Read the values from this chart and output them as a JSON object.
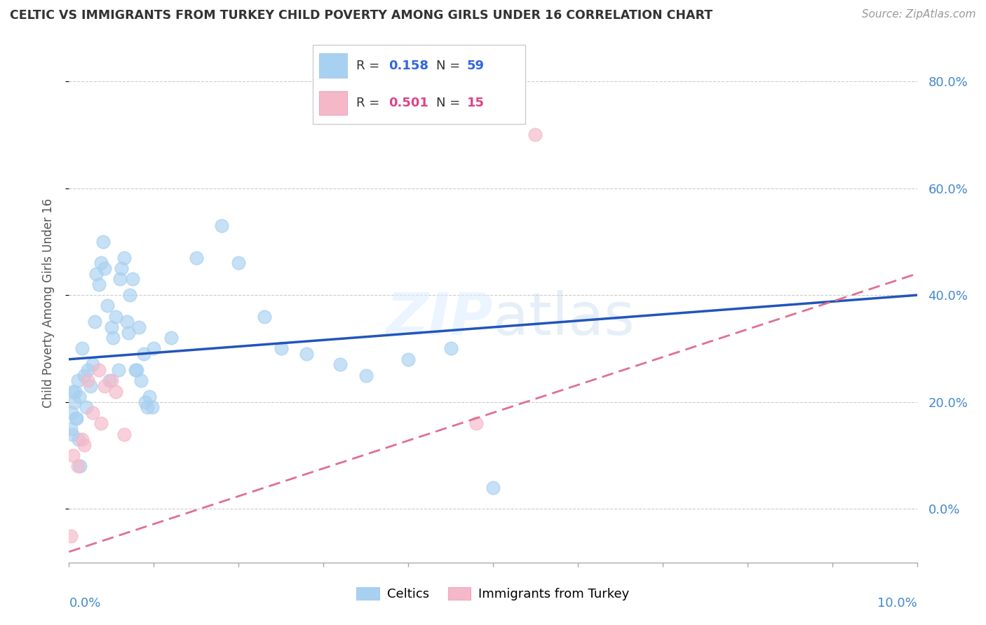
{
  "title": "CELTIC VS IMMIGRANTS FROM TURKEY CHILD POVERTY AMONG GIRLS UNDER 16 CORRELATION CHART",
  "source": "Source: ZipAtlas.com",
  "ylabel": "Child Poverty Among Girls Under 16",
  "xlim": [
    0.0,
    10.0
  ],
  "ylim": [
    -10.0,
    87.0
  ],
  "yticks": [
    0.0,
    20.0,
    40.0,
    60.0,
    80.0
  ],
  "ytick_labels": [
    "0.0%",
    "20.0%",
    "40.0%",
    "60.0%",
    "80.0%"
  ],
  "celtics_color": "#a8d0f0",
  "turkey_color": "#f5b8c8",
  "celtics_line_color": "#2255bb",
  "turkey_line_color": "#e07090",
  "celtics_x": [
    0.05,
    0.08,
    0.1,
    0.12,
    0.15,
    0.18,
    0.2,
    0.22,
    0.25,
    0.28,
    0.3,
    0.32,
    0.35,
    0.38,
    0.4,
    0.42,
    0.45,
    0.48,
    0.5,
    0.52,
    0.55,
    0.58,
    0.6,
    0.62,
    0.65,
    0.68,
    0.7,
    0.72,
    0.75,
    0.78,
    0.8,
    0.82,
    0.85,
    0.88,
    0.9,
    0.92,
    0.95,
    0.98,
    1.0,
    1.2,
    1.5,
    1.8,
    2.0,
    2.3,
    2.5,
    2.8,
    3.2,
    3.5,
    4.0,
    4.5,
    0.02,
    0.03,
    0.04,
    0.06,
    0.07,
    0.09,
    0.11,
    0.13,
    5.0
  ],
  "celtics_y": [
    22.0,
    17.0,
    24.0,
    21.0,
    30.0,
    25.0,
    19.0,
    26.0,
    23.0,
    27.0,
    35.0,
    44.0,
    42.0,
    46.0,
    50.0,
    45.0,
    38.0,
    24.0,
    34.0,
    32.0,
    36.0,
    26.0,
    43.0,
    45.0,
    47.0,
    35.0,
    33.0,
    40.0,
    43.0,
    26.0,
    26.0,
    34.0,
    24.0,
    29.0,
    20.0,
    19.0,
    21.0,
    19.0,
    30.0,
    32.0,
    47.0,
    53.0,
    46.0,
    36.0,
    30.0,
    29.0,
    27.0,
    25.0,
    28.0,
    30.0,
    15.0,
    18.0,
    14.0,
    20.0,
    22.0,
    17.0,
    13.0,
    8.0,
    4.0
  ],
  "turkey_x": [
    0.02,
    0.05,
    0.1,
    0.15,
    0.18,
    0.22,
    0.28,
    0.35,
    0.38,
    0.42,
    0.5,
    0.55,
    0.65,
    4.8,
    5.5
  ],
  "turkey_y": [
    -5.0,
    10.0,
    8.0,
    13.0,
    12.0,
    24.0,
    18.0,
    26.0,
    16.0,
    23.0,
    24.0,
    22.0,
    14.0,
    16.0,
    70.0
  ],
  "celtics_line_x0": 0.0,
  "celtics_line_y0": 28.0,
  "celtics_line_x1": 10.0,
  "celtics_line_y1": 40.0,
  "turkey_line_x0": 0.0,
  "turkey_line_y0": -8.0,
  "turkey_line_x1": 10.0,
  "turkey_line_y1": 44.0
}
